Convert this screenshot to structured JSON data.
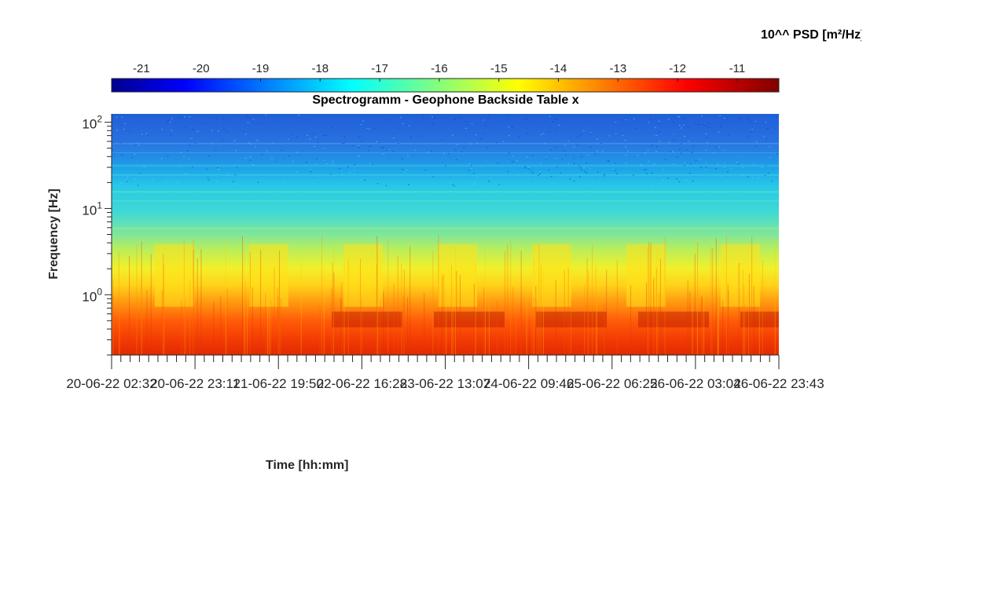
{
  "chart_data": {
    "type": "heatmap",
    "title": "Spectrogramm - Geophone Backside Table x",
    "xlabel": "Time [hh:mm]",
    "ylabel": "Frequency [Hz]",
    "colorbar": {
      "label": "10^^ PSD [m²/Hz]",
      "ticks": [
        "-21",
        "-20",
        "-19",
        "-18",
        "-17",
        "-16",
        "-15",
        "-14",
        "-13",
        "-12",
        "-11"
      ],
      "range": [
        -21.5,
        -10.3
      ],
      "colormap": "jet",
      "placement": "top"
    },
    "x_tick_labels": [
      "20-06-22 02:32",
      "20-06-22 23:11",
      "21-06-22 19:50",
      "22-06-22 16:28",
      "23-06-22 13:07",
      "24-06-22 09:46",
      "25-06-22 06:25",
      "26-06-22 03:04",
      "26-06-22 23:43"
    ],
    "xlim": [
      "20-06-22 02:32",
      "26-06-22 23:43"
    ],
    "y_scale": "log",
    "y_tick_labels": [
      {
        "base": "10",
        "exp": "0"
      },
      {
        "base": "10",
        "exp": "1"
      },
      {
        "base": "10",
        "exp": "2"
      }
    ],
    "ylim": [
      0.2,
      125
    ],
    "grid": false,
    "approx_psd_log10_by_band": [
      {
        "frequency_hz": "0.2 – 0.6",
        "value": -12
      },
      {
        "frequency_hz": "0.6 – 1",
        "value": -13.5
      },
      {
        "frequency_hz": "1 – 3",
        "value": -15
      },
      {
        "frequency_hz": "3 – 10",
        "value": -16.5
      },
      {
        "frequency_hz": "10 – 40",
        "value": -17.5
      },
      {
        "frequency_hz": "40 – 125",
        "value": -19
      }
    ]
  }
}
